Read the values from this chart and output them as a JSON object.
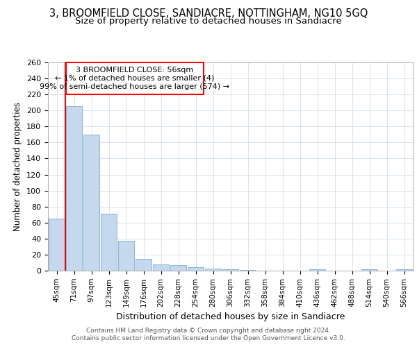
{
  "title_line1": "3, BROOMFIELD CLOSE, SANDIACRE, NOTTINGHAM, NG10 5GQ",
  "title_line2": "Size of property relative to detached houses in Sandiacre",
  "xlabel": "Distribution of detached houses by size in Sandiacre",
  "ylabel": "Number of detached properties",
  "bar_labels": [
    "45sqm",
    "71sqm",
    "97sqm",
    "123sqm",
    "149sqm",
    "176sqm",
    "202sqm",
    "228sqm",
    "254sqm",
    "280sqm",
    "306sqm",
    "332sqm",
    "358sqm",
    "384sqm",
    "410sqm",
    "436sqm",
    "462sqm",
    "488sqm",
    "514sqm",
    "540sqm",
    "566sqm"
  ],
  "bar_values": [
    65,
    205,
    170,
    71,
    37,
    15,
    8,
    7,
    4,
    3,
    2,
    1,
    0,
    0,
    0,
    2,
    0,
    0,
    2,
    0,
    2
  ],
  "bar_color": "#c5d8ee",
  "bar_edge_color": "#7bafd4",
  "annotation_line1": "3 BROOMFIELD CLOSE: 56sqm",
  "annotation_line2": "← 1% of detached houses are smaller (4)",
  "annotation_line3": "99% of semi-detached houses are larger (574) →",
  "ylim": [
    0,
    260
  ],
  "yticks": [
    0,
    20,
    40,
    60,
    80,
    100,
    120,
    140,
    160,
    180,
    200,
    220,
    240,
    260
  ],
  "background_color": "#ffffff",
  "grid_color": "#c8d8e8",
  "footer_line1": "Contains HM Land Registry data © Crown copyright and database right 2024.",
  "footer_line2": "Contains public sector information licensed under the Open Government Licence v3.0."
}
